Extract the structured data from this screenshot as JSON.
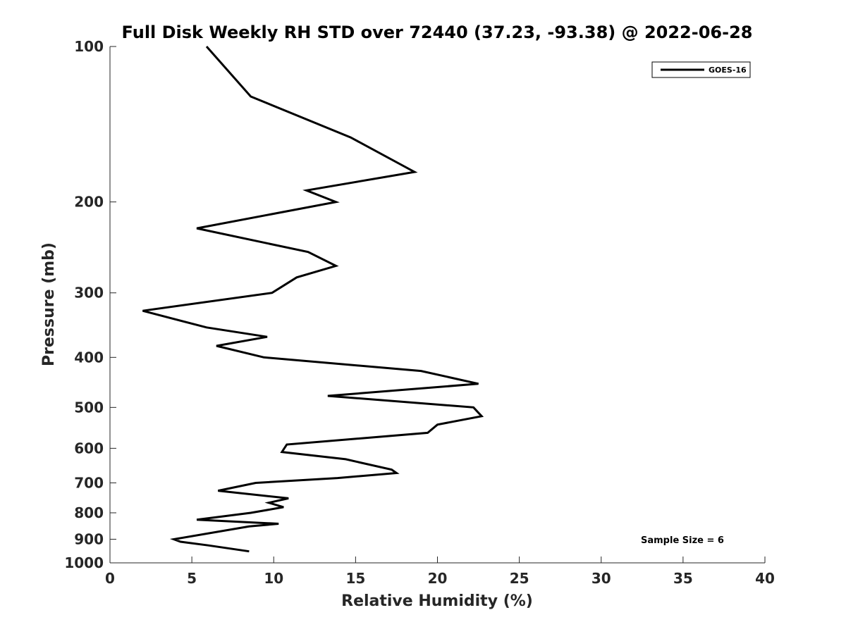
{
  "chart_data": {
    "type": "line",
    "title": "Full Disk Weekly RH STD over 72440 (37.23, -93.38) @ 2022-06-28",
    "xlabel": "Relative Humidity (%)",
    "ylabel": "Pressure (mb)",
    "xlim": [
      0,
      40
    ],
    "ylim": [
      100,
      1000
    ],
    "y_scale": "log",
    "y_reversed": true,
    "x_ticks": [
      0,
      5,
      10,
      15,
      20,
      25,
      30,
      35,
      40
    ],
    "y_ticks": [
      100,
      200,
      300,
      400,
      500,
      600,
      700,
      800,
      900,
      1000
    ],
    "grid": false,
    "legend_position": "top-right",
    "annotation": "Sample Size = 6",
    "series": [
      {
        "name": "GOES-16",
        "color": "#000000",
        "points": [
          [
            5.9,
            100
          ],
          [
            8.6,
            125
          ],
          [
            14.7,
            150
          ],
          [
            18.6,
            175
          ],
          [
            12.0,
            190
          ],
          [
            13.8,
            200
          ],
          [
            5.3,
            225
          ],
          [
            12.1,
            250
          ],
          [
            13.8,
            266
          ],
          [
            11.4,
            280
          ],
          [
            9.9,
            300
          ],
          [
            2.0,
            325
          ],
          [
            5.9,
            350
          ],
          [
            9.6,
            365
          ],
          [
            6.5,
            380
          ],
          [
            9.4,
            400
          ],
          [
            19.0,
            425
          ],
          [
            22.5,
            450
          ],
          [
            13.3,
            475
          ],
          [
            22.2,
            500
          ],
          [
            22.7,
            520
          ],
          [
            20.0,
            540
          ],
          [
            19.4,
            560
          ],
          [
            10.8,
            590
          ],
          [
            10.5,
            610
          ],
          [
            14.4,
            630
          ],
          [
            17.2,
            660
          ],
          [
            17.5,
            670
          ],
          [
            13.9,
            685
          ],
          [
            8.9,
            700
          ],
          [
            6.6,
            725
          ],
          [
            10.9,
            750
          ],
          [
            9.7,
            765
          ],
          [
            10.6,
            780
          ],
          [
            8.6,
            800
          ],
          [
            5.3,
            825
          ],
          [
            10.3,
            840
          ],
          [
            8.5,
            850
          ],
          [
            3.9,
            900
          ],
          [
            4.3,
            910
          ],
          [
            6.0,
            925
          ],
          [
            8.5,
            950
          ]
        ]
      }
    ]
  }
}
